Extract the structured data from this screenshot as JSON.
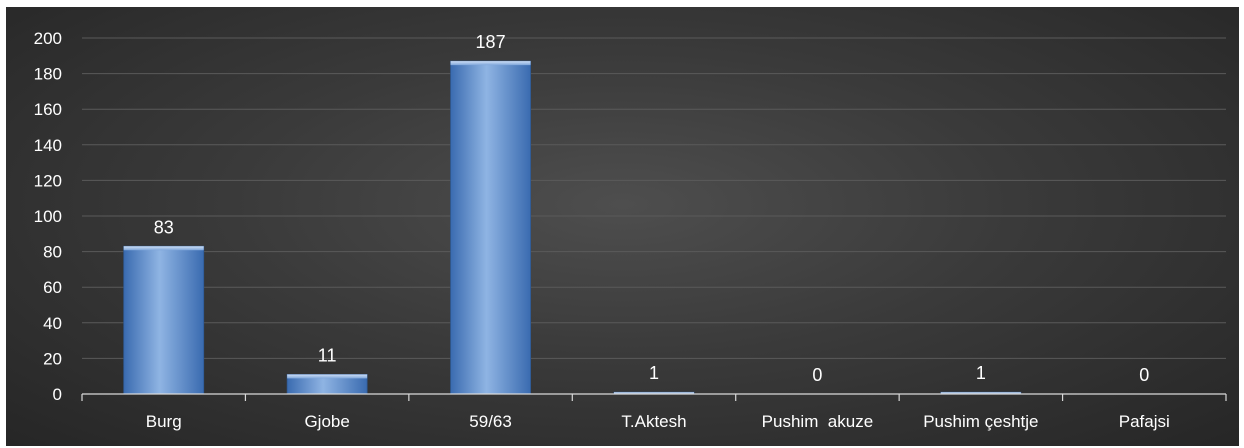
{
  "chart_data": {
    "type": "bar",
    "categories": [
      "Burg",
      "Gjobe",
      "59/63",
      "T.Aktesh",
      "Pushim  akuze",
      "Pushim çeshtje",
      "Pafajsi"
    ],
    "values": [
      83,
      11,
      187,
      1,
      0,
      1,
      0
    ],
    "ylim": [
      0,
      200
    ],
    "ytick_step": 20,
    "data_labels": true,
    "grid": true,
    "legend": "none",
    "colors": {
      "background_center": "#4e4e4e",
      "background_edge": "#262626",
      "bar_light": "#8fb4e3",
      "bar_mid": "#5b8fd0",
      "bar_dark": "#3a6bb0",
      "text": "#ffffff",
      "grid": "#5a5a5a",
      "axis": "#d9d9d9"
    }
  }
}
